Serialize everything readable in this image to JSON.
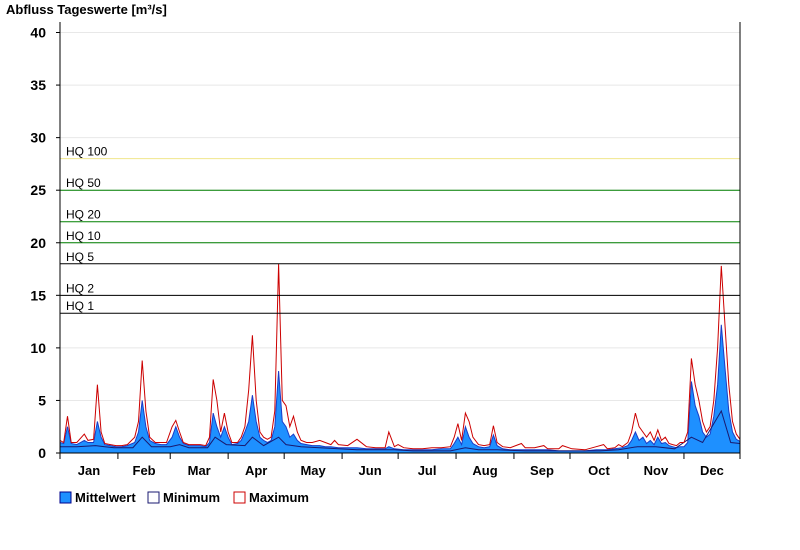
{
  "chart_data": {
    "type": "area",
    "title": "Abfluss Tageswerte [m³/s]",
    "ylim": [
      0,
      41
    ],
    "y_ticks": [
      "0",
      "5",
      "10",
      "15",
      "20",
      "25",
      "30",
      "35",
      "40"
    ],
    "y_tick_values": [
      0,
      5,
      10,
      15,
      20,
      25,
      30,
      35,
      40
    ],
    "months": [
      "Jan",
      "Feb",
      "Mar",
      "Apr",
      "May",
      "Jun",
      "Jul",
      "Aug",
      "Sep",
      "Oct",
      "Nov",
      "Dec"
    ],
    "x_unit": "day of year",
    "grid": "horizontal",
    "legend_position": "bottom-left",
    "thresholds": [
      {
        "label": "HQ 100",
        "value": 28.0,
        "color": "#f0e68c"
      },
      {
        "label": "HQ 50",
        "value": 25.0,
        "color": "#008000"
      },
      {
        "label": "HQ 20",
        "value": 22.0,
        "color": "#008000"
      },
      {
        "label": "HQ 10",
        "value": 20.0,
        "color": "#008000"
      },
      {
        "label": "HQ 5",
        "value": 18.0,
        "color": "#000000"
      },
      {
        "label": "HQ 2",
        "value": 15.0,
        "color": "#000000"
      },
      {
        "label": "HQ 1",
        "value": 13.3,
        "color": "#000000"
      }
    ],
    "series": [
      {
        "name": "Mittelwert",
        "color": "#1e90ff",
        "points": [
          [
            1,
            1.0
          ],
          [
            3,
            0.9
          ],
          [
            5,
            2.5
          ],
          [
            7,
            0.9
          ],
          [
            10,
            0.8
          ],
          [
            14,
            1.2
          ],
          [
            16,
            1.0
          ],
          [
            19,
            1.0
          ],
          [
            21,
            3.0
          ],
          [
            23,
            1.5
          ],
          [
            25,
            0.8
          ],
          [
            28,
            0.7
          ],
          [
            31,
            0.6
          ],
          [
            34,
            0.6
          ],
          [
            37,
            0.7
          ],
          [
            41,
            1.0
          ],
          [
            43,
            2.0
          ],
          [
            45,
            5.0
          ],
          [
            47,
            2.5
          ],
          [
            49,
            1.2
          ],
          [
            52,
            0.9
          ],
          [
            55,
            0.8
          ],
          [
            58,
            0.8
          ],
          [
            61,
            1.5
          ],
          [
            63,
            2.5
          ],
          [
            65,
            1.5
          ],
          [
            67,
            0.9
          ],
          [
            70,
            0.7
          ],
          [
            73,
            0.7
          ],
          [
            76,
            0.7
          ],
          [
            79,
            0.6
          ],
          [
            81,
            1.0
          ],
          [
            83,
            3.8
          ],
          [
            85,
            2.5
          ],
          [
            87,
            1.5
          ],
          [
            89,
            2.5
          ],
          [
            91,
            1.5
          ],
          [
            93,
            0.8
          ],
          [
            96,
            0.9
          ],
          [
            98,
            1.2
          ],
          [
            100,
            2.0
          ],
          [
            102,
            3.0
          ],
          [
            104,
            5.5
          ],
          [
            106,
            3.0
          ],
          [
            108,
            1.5
          ],
          [
            110,
            1.2
          ],
          [
            112,
            1.0
          ],
          [
            114,
            1.2
          ],
          [
            116,
            2.5
          ],
          [
            118,
            7.8
          ],
          [
            120,
            3.0
          ],
          [
            122,
            2.5
          ],
          [
            124,
            1.5
          ],
          [
            126,
            1.8
          ],
          [
            128,
            1.2
          ],
          [
            130,
            0.9
          ],
          [
            133,
            0.8
          ],
          [
            136,
            0.7
          ],
          [
            140,
            0.7
          ],
          [
            143,
            0.6
          ],
          [
            146,
            0.6
          ],
          [
            150,
            0.5
          ],
          [
            155,
            0.5
          ],
          [
            160,
            0.5
          ],
          [
            165,
            0.4
          ],
          [
            170,
            0.4
          ],
          [
            175,
            0.4
          ],
          [
            177,
            0.6
          ],
          [
            180,
            0.4
          ],
          [
            185,
            0.3
          ],
          [
            190,
            0.3
          ],
          [
            195,
            0.3
          ],
          [
            200,
            0.3
          ],
          [
            205,
            0.4
          ],
          [
            210,
            0.4
          ],
          [
            212,
            0.9
          ],
          [
            214,
            1.5
          ],
          [
            216,
            0.8
          ],
          [
            218,
            2.5
          ],
          [
            220,
            1.5
          ],
          [
            222,
            0.9
          ],
          [
            225,
            0.6
          ],
          [
            228,
            0.5
          ],
          [
            231,
            0.6
          ],
          [
            233,
            1.7
          ],
          [
            235,
            0.7
          ],
          [
            238,
            0.4
          ],
          [
            242,
            0.3
          ],
          [
            248,
            0.3
          ],
          [
            255,
            0.3
          ],
          [
            262,
            0.3
          ],
          [
            268,
            0.2
          ],
          [
            275,
            0.2
          ],
          [
            282,
            0.2
          ],
          [
            288,
            0.3
          ],
          [
            294,
            0.3
          ],
          [
            298,
            0.4
          ],
          [
            302,
            0.5
          ],
          [
            305,
            0.7
          ],
          [
            307,
            1.2
          ],
          [
            309,
            2.0
          ],
          [
            311,
            1.2
          ],
          [
            313,
            1.5
          ],
          [
            315,
            0.9
          ],
          [
            317,
            1.2
          ],
          [
            319,
            0.8
          ],
          [
            321,
            1.5
          ],
          [
            323,
            0.9
          ],
          [
            325,
            1.0
          ],
          [
            327,
            0.7
          ],
          [
            329,
            0.6
          ],
          [
            331,
            0.5
          ],
          [
            333,
            0.6
          ],
          [
            335,
            0.6
          ],
          [
            337,
            1.0
          ],
          [
            339,
            6.8
          ],
          [
            341,
            4.5
          ],
          [
            343,
            3.5
          ],
          [
            345,
            2.0
          ],
          [
            347,
            1.5
          ],
          [
            349,
            1.8
          ],
          [
            351,
            3.5
          ],
          [
            353,
            6.5
          ],
          [
            355,
            12.2
          ],
          [
            357,
            8.0
          ],
          [
            359,
            4.0
          ],
          [
            361,
            2.0
          ],
          [
            363,
            1.3
          ],
          [
            365,
            1.1
          ]
        ]
      },
      {
        "name": "Minimum",
        "color": "#191970",
        "points": [
          [
            1,
            0.6
          ],
          [
            5,
            0.6
          ],
          [
            10,
            0.6
          ],
          [
            20,
            0.7
          ],
          [
            25,
            0.6
          ],
          [
            30,
            0.5
          ],
          [
            40,
            0.5
          ],
          [
            45,
            1.5
          ],
          [
            50,
            0.6
          ],
          [
            60,
            0.6
          ],
          [
            65,
            0.8
          ],
          [
            70,
            0.5
          ],
          [
            80,
            0.5
          ],
          [
            84,
            1.5
          ],
          [
            90,
            0.8
          ],
          [
            100,
            0.7
          ],
          [
            104,
            1.5
          ],
          [
            110,
            0.7
          ],
          [
            118,
            1.5
          ],
          [
            122,
            0.8
          ],
          [
            130,
            0.6
          ],
          [
            140,
            0.5
          ],
          [
            150,
            0.4
          ],
          [
            160,
            0.3
          ],
          [
            170,
            0.3
          ],
          [
            180,
            0.3
          ],
          [
            190,
            0.2
          ],
          [
            200,
            0.2
          ],
          [
            210,
            0.2
          ],
          [
            218,
            0.5
          ],
          [
            225,
            0.3
          ],
          [
            235,
            0.3
          ],
          [
            250,
            0.2
          ],
          [
            260,
            0.2
          ],
          [
            270,
            0.2
          ],
          [
            280,
            0.2
          ],
          [
            290,
            0.2
          ],
          [
            300,
            0.3
          ],
          [
            310,
            0.6
          ],
          [
            320,
            0.6
          ],
          [
            330,
            0.4
          ],
          [
            339,
            1.5
          ],
          [
            345,
            1.0
          ],
          [
            355,
            4.0
          ],
          [
            360,
            1.0
          ],
          [
            365,
            0.9
          ]
        ]
      },
      {
        "name": "Maximum",
        "color": "#cc0000",
        "points": [
          [
            1,
            1.2
          ],
          [
            3,
            1.0
          ],
          [
            5,
            3.5
          ],
          [
            7,
            1.0
          ],
          [
            10,
            1.0
          ],
          [
            14,
            1.8
          ],
          [
            16,
            1.2
          ],
          [
            19,
            1.3
          ],
          [
            21,
            6.5
          ],
          [
            23,
            2.0
          ],
          [
            25,
            0.9
          ],
          [
            28,
            0.8
          ],
          [
            31,
            0.7
          ],
          [
            34,
            0.7
          ],
          [
            37,
            0.8
          ],
          [
            41,
            1.5
          ],
          [
            43,
            3.0
          ],
          [
            45,
            8.8
          ],
          [
            47,
            4.0
          ],
          [
            49,
            1.5
          ],
          [
            52,
            1.0
          ],
          [
            55,
            1.0
          ],
          [
            58,
            1.0
          ],
          [
            61,
            2.5
          ],
          [
            63,
            3.1
          ],
          [
            65,
            2.0
          ],
          [
            67,
            1.0
          ],
          [
            70,
            0.8
          ],
          [
            73,
            0.8
          ],
          [
            76,
            0.8
          ],
          [
            79,
            0.7
          ],
          [
            81,
            1.5
          ],
          [
            83,
            7.0
          ],
          [
            85,
            5.0
          ],
          [
            87,
            2.0
          ],
          [
            89,
            3.8
          ],
          [
            91,
            2.0
          ],
          [
            93,
            1.0
          ],
          [
            96,
            1.0
          ],
          [
            98,
            1.5
          ],
          [
            100,
            2.5
          ],
          [
            102,
            6.0
          ],
          [
            104,
            11.2
          ],
          [
            106,
            5.0
          ],
          [
            108,
            2.0
          ],
          [
            110,
            1.5
          ],
          [
            112,
            1.3
          ],
          [
            114,
            1.5
          ],
          [
            116,
            4.0
          ],
          [
            118,
            18.0
          ],
          [
            120,
            5.0
          ],
          [
            122,
            4.5
          ],
          [
            124,
            2.5
          ],
          [
            126,
            3.5
          ],
          [
            128,
            2.0
          ],
          [
            130,
            1.2
          ],
          [
            133,
            1.0
          ],
          [
            136,
            1.0
          ],
          [
            140,
            1.2
          ],
          [
            143,
            1.0
          ],
          [
            146,
            0.8
          ],
          [
            148,
            1.2
          ],
          [
            150,
            0.8
          ],
          [
            155,
            0.7
          ],
          [
            160,
            1.3
          ],
          [
            165,
            0.6
          ],
          [
            170,
            0.5
          ],
          [
            175,
            0.5
          ],
          [
            177,
            2.0
          ],
          [
            180,
            0.6
          ],
          [
            182,
            0.8
          ],
          [
            185,
            0.5
          ],
          [
            190,
            0.4
          ],
          [
            195,
            0.4
          ],
          [
            200,
            0.5
          ],
          [
            205,
            0.5
          ],
          [
            210,
            0.6
          ],
          [
            212,
            1.5
          ],
          [
            214,
            2.8
          ],
          [
            216,
            1.2
          ],
          [
            218,
            3.8
          ],
          [
            220,
            3.0
          ],
          [
            222,
            1.5
          ],
          [
            225,
            0.8
          ],
          [
            228,
            0.7
          ],
          [
            231,
            0.8
          ],
          [
            233,
            2.6
          ],
          [
            235,
            1.0
          ],
          [
            238,
            0.6
          ],
          [
            242,
            0.5
          ],
          [
            248,
            0.9
          ],
          [
            250,
            0.5
          ],
          [
            255,
            0.5
          ],
          [
            260,
            0.7
          ],
          [
            262,
            0.4
          ],
          [
            268,
            0.4
          ],
          [
            270,
            0.7
          ],
          [
            275,
            0.4
          ],
          [
            282,
            0.3
          ],
          [
            288,
            0.6
          ],
          [
            292,
            0.8
          ],
          [
            294,
            0.4
          ],
          [
            298,
            0.5
          ],
          [
            300,
            0.8
          ],
          [
            302,
            0.6
          ],
          [
            305,
            1.0
          ],
          [
            307,
            2.0
          ],
          [
            309,
            3.8
          ],
          [
            311,
            2.5
          ],
          [
            313,
            2.0
          ],
          [
            315,
            1.5
          ],
          [
            317,
            2.0
          ],
          [
            319,
            1.2
          ],
          [
            321,
            2.2
          ],
          [
            323,
            1.2
          ],
          [
            325,
            1.5
          ],
          [
            327,
            0.9
          ],
          [
            329,
            0.8
          ],
          [
            331,
            0.7
          ],
          [
            333,
            1.0
          ],
          [
            335,
            1.0
          ],
          [
            337,
            2.0
          ],
          [
            339,
            9.0
          ],
          [
            341,
            6.5
          ],
          [
            343,
            5.0
          ],
          [
            345,
            3.0
          ],
          [
            347,
            2.0
          ],
          [
            349,
            2.5
          ],
          [
            351,
            5.0
          ],
          [
            353,
            10.0
          ],
          [
            355,
            17.8
          ],
          [
            357,
            12.0
          ],
          [
            359,
            6.5
          ],
          [
            361,
            3.0
          ],
          [
            363,
            1.8
          ],
          [
            365,
            1.3
          ]
        ]
      }
    ]
  },
  "legend": [
    {
      "label": "Mittelwert",
      "fill": "#1e90ff",
      "stroke": "#00008b"
    },
    {
      "label": "Minimum",
      "fill": "#ffffff",
      "stroke": "#191970"
    },
    {
      "label": "Maximum",
      "fill": "#ffffff",
      "stroke": "#cc0000"
    }
  ]
}
